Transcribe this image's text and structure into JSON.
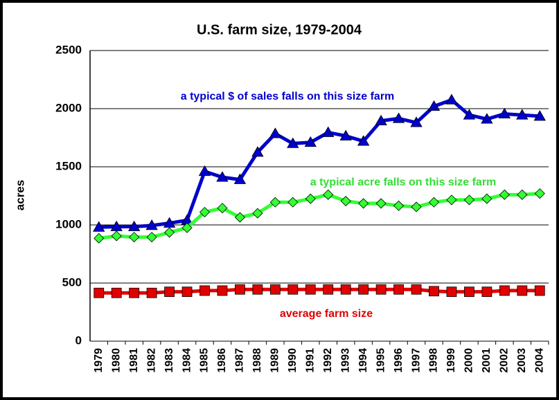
{
  "chart_data": {
    "type": "line",
    "title": "U.S. farm size, 1979-2004",
    "y_label": "acres",
    "categories": [
      "1979",
      "1980",
      "1981",
      "1982",
      "1983",
      "1984",
      "1985",
      "1986",
      "1987",
      "1988",
      "1989",
      "1990",
      "1991",
      "1992",
      "1993",
      "1994",
      "1995",
      "1996",
      "1997",
      "1998",
      "1999",
      "2000",
      "2001",
      "2002",
      "2003",
      "2004"
    ],
    "series": [
      {
        "name": "a typical $ of sales falls on this size farm",
        "color": "#0000cc",
        "marker": "triangle",
        "values": [
          980,
          985,
          985,
          995,
          1015,
          1040,
          1460,
          1410,
          1390,
          1625,
          1785,
          1700,
          1710,
          1795,
          1765,
          1720,
          1895,
          1915,
          1880,
          2020,
          2075,
          1945,
          1910,
          1955,
          1945,
          1935
        ]
      },
      {
        "name": "a typical acre falls on this size farm",
        "color": "#33ff33",
        "marker": "diamond",
        "values": [
          885,
          905,
          895,
          895,
          935,
          975,
          1110,
          1145,
          1065,
          1100,
          1195,
          1195,
          1225,
          1260,
          1205,
          1185,
          1185,
          1165,
          1155,
          1195,
          1215,
          1215,
          1225,
          1260,
          1260,
          1270
        ]
      },
      {
        "name": "average farm size",
        "color": "#e00000",
        "marker": "square",
        "values": [
          415,
          415,
          415,
          415,
          425,
          425,
          435,
          435,
          445,
          445,
          445,
          445,
          445,
          445,
          445,
          445,
          445,
          445,
          445,
          430,
          425,
          425,
          425,
          435,
          435,
          435
        ]
      }
    ],
    "ylim": [
      0,
      2500
    ],
    "yticks": [
      0,
      500,
      1000,
      1500,
      2000,
      2500
    ],
    "grid": true
  }
}
